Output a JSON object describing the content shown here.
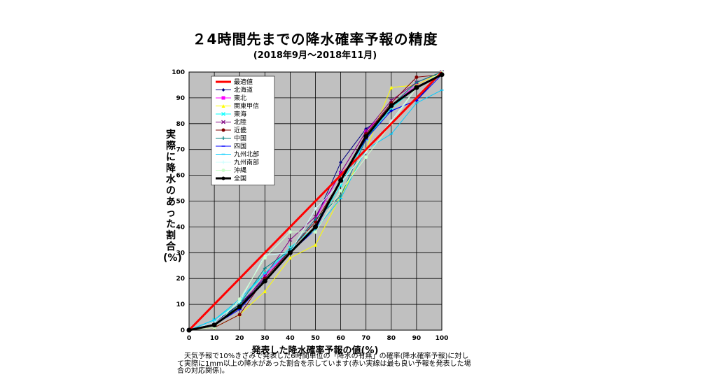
{
  "chart_data": {
    "type": "line",
    "title": "２4時間先までの降水確率予報の精度",
    "subtitle": "(2018年9月～2018年11月)",
    "xlabel": "発表した降水確率予報の値(%)",
    "ylabel": "実際に降水のあった割合(%)",
    "xlim": [
      0,
      100
    ],
    "ylim": [
      0,
      100
    ],
    "xticks": [
      "0",
      "10",
      "20",
      "30",
      "40",
      "50",
      "60",
      "70",
      "80",
      "90",
      "100"
    ],
    "yticks": [
      "0",
      "10",
      "20",
      "30",
      "40",
      "50",
      "60",
      "70",
      "80",
      "90",
      "100"
    ],
    "grid": true,
    "legend_position": "top-left",
    "x": [
      0,
      10,
      20,
      30,
      40,
      50,
      60,
      70,
      80,
      90,
      100
    ],
    "series": [
      {
        "name": "最適値",
        "color": "#ff0000",
        "marker": "none",
        "width": 3,
        "values": [
          0,
          10,
          20,
          30,
          40,
          50,
          60,
          70,
          80,
          90,
          100
        ]
      },
      {
        "name": "北海道",
        "color": "#000080",
        "marker": "diamond",
        "width": 1,
        "values": [
          0,
          3,
          10,
          20,
          31,
          43,
          65,
          78,
          85,
          89,
          100
        ]
      },
      {
        "name": "東北",
        "color": "#ff00ff",
        "marker": "square",
        "width": 1,
        "values": [
          0,
          2,
          9,
          21,
          31,
          43,
          61,
          77,
          87,
          95,
          100
        ]
      },
      {
        "name": "関東甲信",
        "color": "#ffff00",
        "marker": "triangle",
        "width": 1,
        "values": [
          0,
          1,
          6,
          15,
          28,
          33,
          52,
          70,
          94,
          95,
          100
        ]
      },
      {
        "name": "東海",
        "color": "#00ffff",
        "marker": "x",
        "width": 1,
        "values": [
          0,
          4,
          11,
          22,
          32,
          40,
          56,
          74,
          86,
          94,
          100
        ]
      },
      {
        "name": "北陸",
        "color": "#800080",
        "marker": "x",
        "width": 1,
        "values": [
          0,
          2,
          9,
          21,
          35,
          44,
          61,
          77,
          89,
          96,
          100
        ]
      },
      {
        "name": "近畿",
        "color": "#800000",
        "marker": "circle",
        "width": 1,
        "values": [
          0,
          1,
          6,
          20,
          31,
          42,
          58,
          76,
          88,
          98,
          99
        ]
      },
      {
        "name": "中国",
        "color": "#008080",
        "marker": "plus",
        "width": 1,
        "values": [
          0,
          2,
          10,
          24,
          31,
          43,
          52,
          74,
          87,
          96,
          100
        ]
      },
      {
        "name": "四国",
        "color": "#0000ff",
        "marker": "dash",
        "width": 1,
        "values": [
          0,
          2,
          8,
          19,
          30,
          39,
          58,
          74,
          85,
          89,
          99
        ]
      },
      {
        "name": "九州北部",
        "color": "#00ccff",
        "marker": "dash",
        "width": 1,
        "values": [
          0,
          4,
          12,
          22,
          31,
          39,
          51,
          70,
          76,
          88,
          93
        ]
      },
      {
        "name": "九州南部",
        "color": "#ccffff",
        "marker": "plus",
        "width": 1,
        "values": [
          0,
          3,
          11,
          29,
          30,
          47,
          57,
          69,
          81,
          94,
          100
        ]
      },
      {
        "name": "沖縄",
        "color": "#ccffcc",
        "marker": "circle",
        "width": 1,
        "values": [
          0,
          1,
          12,
          28,
          38,
          38,
          54,
          67,
          80,
          94,
          100
        ]
      },
      {
        "name": "全国",
        "color": "#000000",
        "marker": "circle",
        "width": 3,
        "values": [
          0,
          2,
          9,
          19,
          30,
          40,
          58,
          75,
          87,
          94,
          99
        ]
      }
    ],
    "note": "天気予報で10%きざみで発表した6時間単位の「降水の有無」の確率(降水確率予報)に対して実際に1mm以上の降水があった割合を示しています(赤い実線は最も良い予報を発表した場合の対応関係)。"
  }
}
